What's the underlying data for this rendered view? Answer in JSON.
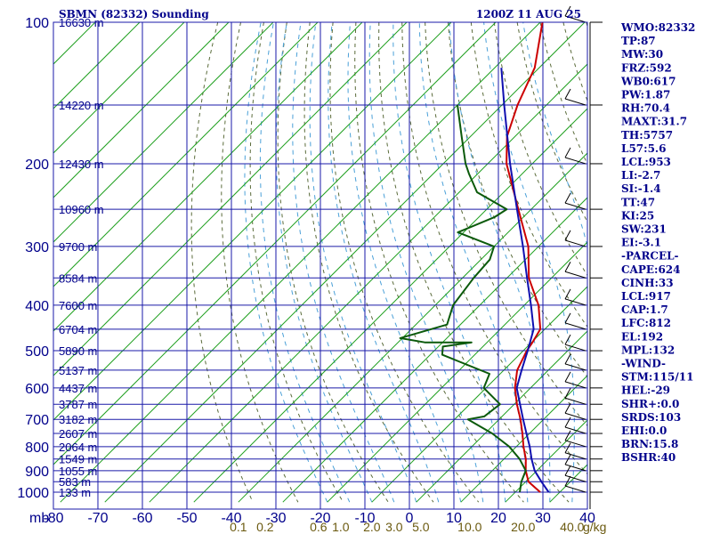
{
  "chart_data": {
    "type": "line",
    "title": "SBMN (82332) Sounding",
    "valid_time": "1200Z 11 AUG 25",
    "x_unit_label": "mb",
    "xlim": [
      -80,
      40
    ],
    "x_ticks": [
      -80,
      -70,
      -60,
      -50,
      -40,
      -30,
      -20,
      -10,
      0,
      10,
      20,
      30,
      40
    ],
    "ylim_mb": [
      100,
      1050
    ],
    "pressure_ticks": [
      100,
      200,
      300,
      400,
      500,
      600,
      700,
      800,
      900,
      1000
    ],
    "height_labels": [
      {
        "p": 100,
        "label": "16630 m"
      },
      {
        "p": 150,
        "label": "14220 m"
      },
      {
        "p": 200,
        "label": "12430 m"
      },
      {
        "p": 250,
        "label": "10960 m"
      },
      {
        "p": 300,
        "label": "9700 m"
      },
      {
        "p": 350,
        "label": "8584 m"
      },
      {
        "p": 400,
        "label": "7600 m"
      },
      {
        "p": 450,
        "label": "6704 m"
      },
      {
        "p": 500,
        "label": "5890 m"
      },
      {
        "p": 550,
        "label": "5137 m"
      },
      {
        "p": 600,
        "label": "4437 m"
      },
      {
        "p": 650,
        "label": "3787 m"
      },
      {
        "p": 700,
        "label": "3182 m"
      },
      {
        "p": 750,
        "label": "2607 m"
      },
      {
        "p": 800,
        "label": "2064 m"
      },
      {
        "p": 850,
        "label": "1549 m"
      },
      {
        "p": 900,
        "label": "1055 m"
      },
      {
        "p": 950,
        "label": "583 m"
      },
      {
        "p": 1000,
        "label": "133 m"
      }
    ],
    "mixing_ratio_labels": [
      {
        "w": "0.1",
        "t": -40
      },
      {
        "w": "0.2",
        "t": -34
      },
      {
        "w": "0.6",
        "t": -22
      },
      {
        "w": "1.0",
        "t": -17
      },
      {
        "w": "2.0",
        "t": -10
      },
      {
        "w": "3.0",
        "t": -5
      },
      {
        "w": "5.0",
        "t": 1
      },
      {
        "w": "10.0",
        "t": 12
      },
      {
        "w": "20.0",
        "t": 24
      },
      {
        "w": "40.0",
        "t": 35
      }
    ],
    "mixing_ratio_unit": "g/kg",
    "series": [
      {
        "color": "#cc0000",
        "points": [
          {
            "p": 1000,
            "t": 25.6
          },
          {
            "p": 950,
            "t": 20.6
          },
          {
            "p": 900,
            "t": 17.5
          },
          {
            "p": 850,
            "t": 14.9
          },
          {
            "p": 800,
            "t": 11.6
          },
          {
            "p": 750,
            "t": 8.4
          },
          {
            "p": 700,
            "t": 4.8
          },
          {
            "p": 650,
            "t": 0.6
          },
          {
            "p": 600,
            "t": -3.5
          },
          {
            "p": 550,
            "t": -7.0
          },
          {
            "p": 500,
            "t": -9.2
          },
          {
            "p": 480,
            "t": -9.8
          },
          {
            "p": 450,
            "t": -11.0
          },
          {
            "p": 400,
            "t": -16.8
          },
          {
            "p": 350,
            "t": -25.1
          },
          {
            "p": 300,
            "t": -32.3
          },
          {
            "p": 250,
            "t": -42.9
          },
          {
            "p": 200,
            "t": -55.8
          },
          {
            "p": 175,
            "t": -61.8
          },
          {
            "p": 150,
            "t": -66.5
          },
          {
            "p": 125,
            "t": -71.0
          },
          {
            "p": 100,
            "t": -79.5
          }
        ]
      },
      {
        "color": "#0b5a0b",
        "points": [
          {
            "p": 1000,
            "t": 21.0
          },
          {
            "p": 950,
            "t": 19.0
          },
          {
            "p": 900,
            "t": 17.5
          },
          {
            "p": 850,
            "t": 13.5
          },
          {
            "p": 800,
            "t": 8.4
          },
          {
            "p": 750,
            "t": 1.6
          },
          {
            "p": 700,
            "t": -7.0
          },
          {
            "p": 690,
            "t": -4.0
          },
          {
            "p": 650,
            "t": -3.2
          },
          {
            "p": 600,
            "t": -10.5
          },
          {
            "p": 560,
            "t": -12.4
          },
          {
            "p": 510,
            "t": -27.3
          },
          {
            "p": 490,
            "t": -29.0
          },
          {
            "p": 480,
            "t": -23.5
          },
          {
            "p": 480,
            "t": -34.0
          },
          {
            "p": 470,
            "t": -40.5
          },
          {
            "p": 440,
            "t": -33.0
          },
          {
            "p": 400,
            "t": -36.0
          },
          {
            "p": 350,
            "t": -37.5
          },
          {
            "p": 320,
            "t": -38.0
          },
          {
            "p": 300,
            "t": -40.0
          },
          {
            "p": 280,
            "t": -51.3
          },
          {
            "p": 260,
            "t": -46.5
          },
          {
            "p": 250,
            "t": -45.5
          },
          {
            "p": 230,
            "t": -56.0
          },
          {
            "p": 210,
            "t": -62.0
          },
          {
            "p": 200,
            "t": -65.0
          },
          {
            "p": 175,
            "t": -72.0
          },
          {
            "p": 150,
            "t": -80.0
          }
        ]
      },
      {
        "color": "#1010b0",
        "points": [
          {
            "p": 1000,
            "t": 27.5
          },
          {
            "p": 950,
            "t": 23.5
          },
          {
            "p": 900,
            "t": 19.5
          },
          {
            "p": 850,
            "t": 16.2
          },
          {
            "p": 800,
            "t": 13.0
          },
          {
            "p": 750,
            "t": 9.3
          },
          {
            "p": 700,
            "t": 5.4
          },
          {
            "p": 650,
            "t": 1.3
          },
          {
            "p": 600,
            "t": -3.1
          },
          {
            "p": 550,
            "t": -6.0
          },
          {
            "p": 500,
            "t": -9.0
          },
          {
            "p": 450,
            "t": -12.5
          },
          {
            "p": 400,
            "t": -18.5
          },
          {
            "p": 350,
            "t": -25.5
          },
          {
            "p": 300,
            "t": -33.5
          },
          {
            "p": 250,
            "t": -43.2
          },
          {
            "p": 200,
            "t": -55.0
          },
          {
            "p": 150,
            "t": -69.5
          },
          {
            "p": 125,
            "t": -78.5
          }
        ]
      }
    ],
    "wind_profile": {
      "side": "right",
      "levels_mb": [
        100,
        150,
        200,
        250,
        300,
        350,
        400,
        450,
        500,
        550,
        600,
        650,
        700,
        750,
        800,
        850,
        900,
        950,
        1000
      ]
    },
    "grid": true
  },
  "indices": [
    "WMO:82332",
    "TP:87",
    "MW:30",
    "FRZ:592",
    "WB0:617",
    "PW:1.87",
    "RH:70.4",
    "MAXT:31.7",
    "TH:5757",
    "L57:5.6",
    "LCL:953",
    "LI:-2.7",
    "SI:-1.4",
    "TT:47",
    "KI:25",
    "SW:231",
    "EI:-3.1",
    "-PARCEL-",
    "CAPE:624",
    "CINH:33",
    "LCL:917",
    "CAP:1.7",
    "LFC:812",
    "EL:192",
    "MPL:132",
    "-WIND-",
    "STM:115/11",
    "HEL:-29",
    "SHR+:0.0",
    "SRDS:103",
    "EHI:0.0",
    "BRN:15.8",
    "BSHR:40"
  ]
}
